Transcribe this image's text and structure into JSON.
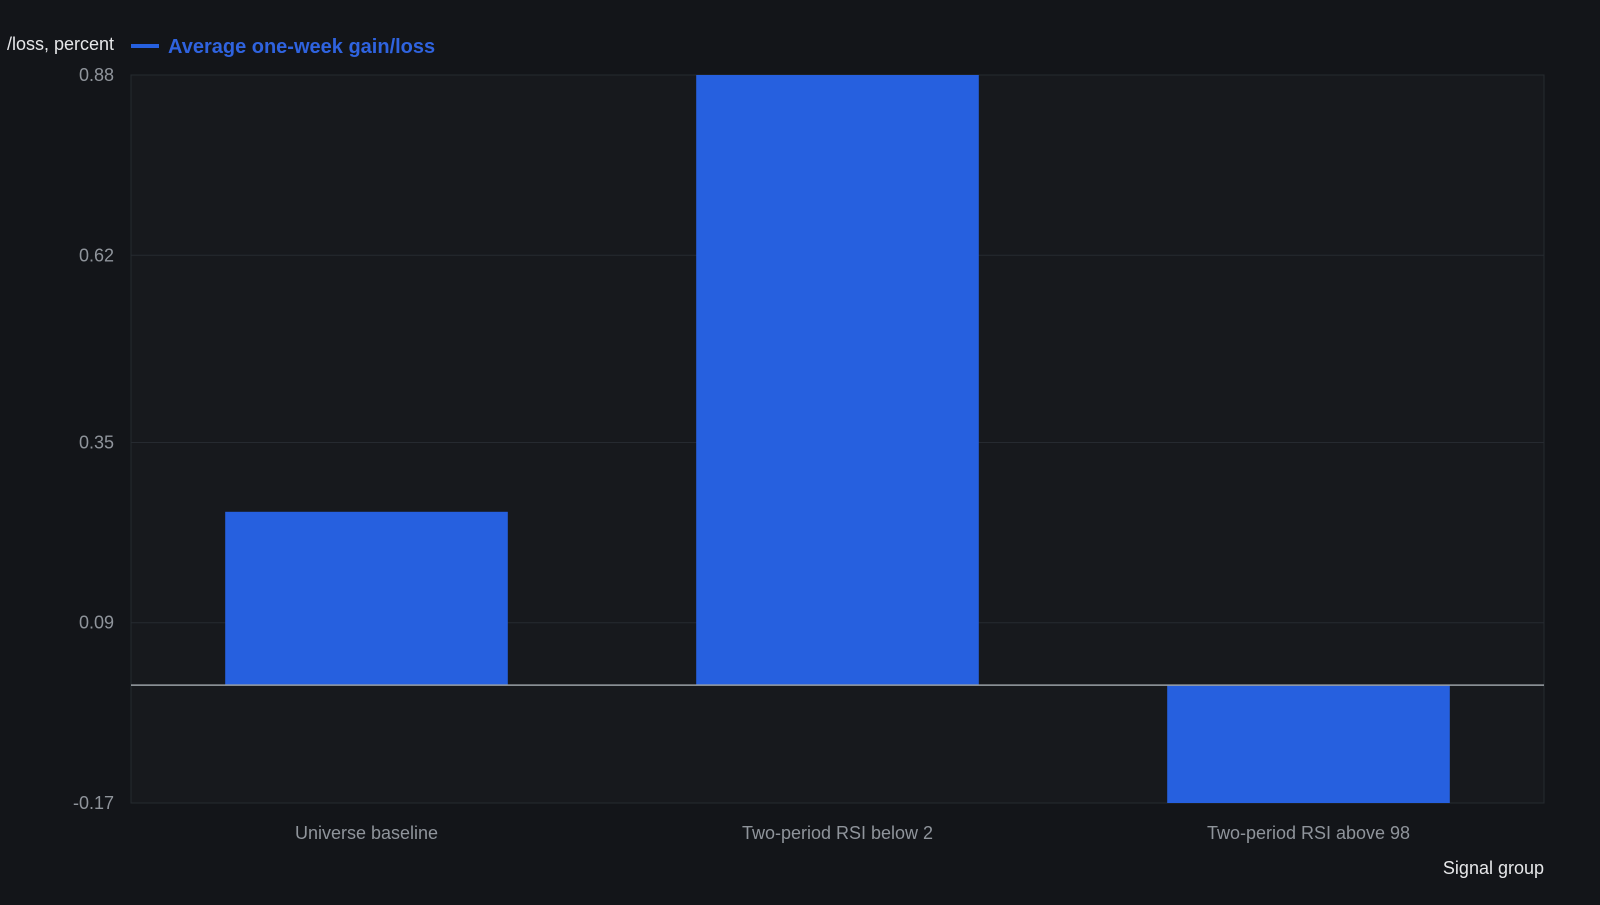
{
  "chart_data": {
    "type": "bar",
    "categories": [
      "Universe baseline",
      "Two-period RSI below 2",
      "Two-period RSI above 98"
    ],
    "series": [
      {
        "name": "Average one-week gain/loss",
        "values": [
          0.25,
          0.88,
          -0.17
        ],
        "color": "#2660df"
      }
    ],
    "xlabel": "Signal group",
    "ylabel": "/loss, percent",
    "ylim": [
      -0.17,
      0.88
    ],
    "yticks": [
      "0.88",
      "0.62",
      "0.35",
      "0.09",
      "-0.17"
    ],
    "ytick_values": [
      0.88,
      0.62,
      0.35,
      0.09,
      -0.17
    ],
    "grid": true,
    "legend_position": "top-left",
    "colors": {
      "background": "#131519",
      "plot_background": "#17191d",
      "grid": "#262a30",
      "zero_line": "#9aa0a6",
      "bar": "#2660df"
    }
  }
}
